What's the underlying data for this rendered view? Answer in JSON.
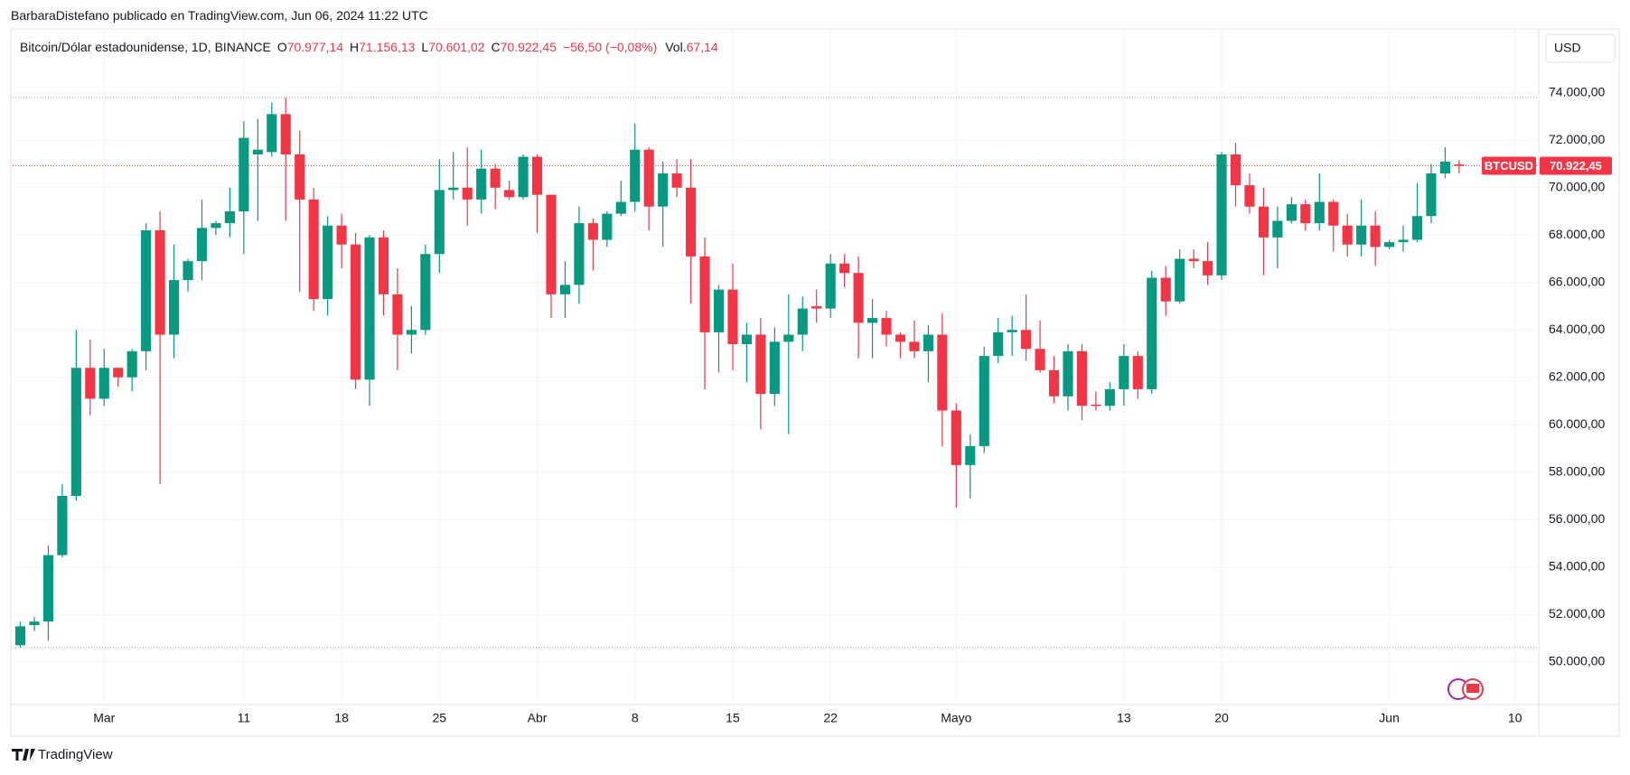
{
  "header": {
    "byline": "BarbaraDistefano publicado en TradingView.com, Jun 06, 2024 11:22 UTC",
    "currency": "USD",
    "brand": "TradingView"
  },
  "legend": {
    "symbol": "Bitcoin/Dólar estadounidense, 1D, BINANCE",
    "items": [
      {
        "key": "O",
        "value": "70.977,14"
      },
      {
        "key": "H",
        "value": "71.156,13"
      },
      {
        "key": "L",
        "value": "70.601,02"
      },
      {
        "key": "C",
        "value": "70.922,45"
      }
    ],
    "change": "−56,50 (−0,08%)",
    "vol_key": "Vol.",
    "vol": "67,14"
  },
  "chart_data": {
    "type": "candlestick",
    "up_color": "#089981",
    "down_color": "#f23645",
    "grid": true,
    "symbol_tag": "BTCUSD",
    "price_label": "70.922,45",
    "open": [
      50700,
      51550,
      51700,
      54500,
      57000,
      62400,
      61100,
      62400,
      62000,
      63100,
      68200,
      63800,
      66100,
      66900,
      68300,
      68500,
      69000,
      71400,
      71500,
      73100,
      71400,
      69500,
      65300,
      68400,
      67600,
      61900,
      67900,
      65500,
      63800,
      64000,
      67200,
      69900,
      70000,
      69500,
      70800,
      69900,
      69600,
      71300,
      69700,
      65500,
      65900,
      68500,
      67800,
      68900,
      69400,
      71600,
      69200,
      70600,
      70000,
      67100,
      63900,
      65700,
      63400,
      63800,
      61300,
      63500,
      63800,
      65000,
      64900,
      66800,
      66400,
      64300,
      64500,
      63800,
      63500,
      63100,
      63800,
      60600,
      58300,
      59100,
      62900,
      63900,
      64000,
      63200,
      62300,
      61200,
      63100,
      60850,
      60800,
      61500,
      62900,
      61500,
      66200,
      65200,
      67000,
      66900,
      66300,
      71400,
      70100,
      69200,
      67900,
      68600,
      69300,
      68500,
      69400,
      68400,
      67600,
      68400,
      67500,
      67700,
      67800,
      68800,
      70600,
      70977.14
    ],
    "high": [
      51700,
      51900,
      54900,
      57500,
      64000,
      63600,
      63200,
      62400,
      63200,
      68500,
      69000,
      67600,
      67000,
      69500,
      68600,
      70000,
      72800,
      72900,
      73600,
      73800,
      72400,
      70000,
      68800,
      68900,
      68100,
      68000,
      68200,
      66600,
      65000,
      67600,
      71200,
      71500,
      71700,
      71600,
      71000,
      70300,
      71400,
      71400,
      69700,
      66900,
      69200,
      68700,
      69000,
      70300,
      72700,
      71700,
      71100,
      71200,
      71200,
      67900,
      65900,
      66800,
      64300,
      64500,
      64100,
      65500,
      65400,
      65700,
      67200,
      67200,
      67100,
      65300,
      64800,
      63900,
      64400,
      64200,
      64700,
      60900,
      59600,
      63300,
      64500,
      64600,
      65500,
      64400,
      62900,
      63400,
      63400,
      61400,
      61800,
      63400,
      63100,
      66500,
      66700,
      67400,
      67400,
      67700,
      71500,
      71900,
      70600,
      70000,
      69200,
      69600,
      69500,
      70600,
      69500,
      68900,
      69500,
      69000,
      67800,
      68400,
      70200,
      71000,
      71700,
      71156.13
    ],
    "low": [
      50600,
      51300,
      50900,
      54400,
      56800,
      60400,
      60800,
      61600,
      61400,
      62300,
      57500,
      62800,
      65600,
      66100,
      68000,
      67900,
      67200,
      68600,
      71300,
      68600,
      65600,
      64800,
      64600,
      66600,
      61500,
      60800,
      64600,
      62300,
      63000,
      63800,
      66400,
      69500,
      68400,
      68900,
      69100,
      69500,
      69500,
      68100,
      64500,
      64500,
      65100,
      66500,
      67500,
      68800,
      69000,
      68200,
      67500,
      69600,
      65100,
      61500,
      62200,
      62300,
      61800,
      59800,
      60800,
      59600,
      63100,
      64300,
      64500,
      65800,
      62800,
      62800,
      63300,
      62800,
      62800,
      61800,
      59100,
      56500,
      56900,
      58800,
      62600,
      62900,
      62700,
      62200,
      60900,
      60600,
      60200,
      60600,
      60600,
      60800,
      61100,
      61300,
      64600,
      65100,
      66600,
      65900,
      66100,
      69200,
      68900,
      66300,
      66600,
      68500,
      68200,
      68200,
      67300,
      67100,
      67100,
      66700,
      67400,
      67300,
      67700,
      68500,
      70400,
      70601.02
    ],
    "close": [
      51500,
      51700,
      54500,
      57000,
      62400,
      61100,
      62400,
      62000,
      63100,
      68200,
      63800,
      66100,
      66900,
      68300,
      68500,
      69000,
      72100,
      71600,
      73100,
      71400,
      69500,
      65300,
      68400,
      67600,
      61900,
      67900,
      65500,
      63800,
      64000,
      67200,
      69900,
      70000,
      69500,
      70800,
      70000,
      69600,
      71300,
      69700,
      65500,
      65900,
      68500,
      67800,
      68900,
      69400,
      71600,
      69200,
      70600,
      70000,
      67100,
      63900,
      65700,
      63400,
      63800,
      61300,
      63500,
      63800,
      64900,
      64900,
      66800,
      66400,
      64300,
      64500,
      63800,
      63500,
      63100,
      63800,
      60600,
      58300,
      59100,
      62900,
      63900,
      64000,
      63200,
      62300,
      61200,
      63100,
      60800,
      60800,
      61500,
      62900,
      61500,
      66200,
      65200,
      67000,
      66900,
      66300,
      71400,
      70100,
      69200,
      67900,
      68600,
      69300,
      68500,
      69400,
      68400,
      67600,
      68400,
      67500,
      67700,
      67800,
      68800,
      70600,
      71100,
      70922.45
    ],
    "xlim": [
      -0.55,
      108.7
    ],
    "xticks": [
      {
        "value": 6,
        "label": "Mar"
      },
      {
        "value": 16,
        "label": "11"
      },
      {
        "value": 23,
        "label": "18"
      },
      {
        "value": 30,
        "label": "25"
      },
      {
        "value": 37,
        "label": "Abr"
      },
      {
        "value": 44,
        "label": "8"
      },
      {
        "value": 51,
        "label": "15"
      },
      {
        "value": 58,
        "label": "22"
      },
      {
        "value": 67,
        "label": "Mayo"
      },
      {
        "value": 79,
        "label": "13"
      },
      {
        "value": 86,
        "label": "20"
      },
      {
        "value": 98,
        "label": "Jun"
      },
      {
        "value": 107,
        "label": "10"
      }
    ],
    "ylim": [
      48200,
      76580
    ],
    "yticks": [
      {
        "value": 50000,
        "label": "50.000,00"
      },
      {
        "value": 52000,
        "label": "52.000,00"
      },
      {
        "value": 54000,
        "label": "54.000,00"
      },
      {
        "value": 56000,
        "label": "56.000,00"
      },
      {
        "value": 58000,
        "label": "58.000,00"
      },
      {
        "value": 60000,
        "label": "60.000,00"
      },
      {
        "value": 62000,
        "label": "62.000,00"
      },
      {
        "value": 64000,
        "label": "64.000,00"
      },
      {
        "value": 66000,
        "label": "66.000,00"
      },
      {
        "value": 68000,
        "label": "68.000,00"
      },
      {
        "value": 70000,
        "label": "70.000,00"
      },
      {
        "value": 72000,
        "label": "72.000,00"
      },
      {
        "value": 74000,
        "label": "74.000,00"
      }
    ]
  }
}
